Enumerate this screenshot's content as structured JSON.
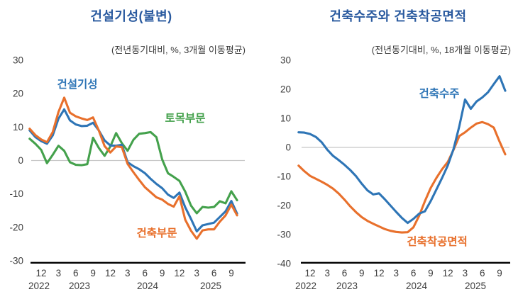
{
  "colors": {
    "title": "#2a5a9f",
    "tick_text": "#3d3d3d",
    "axis": "#000000",
    "zero_line": "#c8c8c8",
    "blue_series": "#2e75b6",
    "green_series": "#44a14c",
    "orange_series": "#e8702c"
  },
  "chart_data": [
    {
      "type": "line",
      "title": "건설기성(불변)",
      "subtitle": "(전년동기대비,  %,  3개월 이동평균)",
      "x_start": "2022-10",
      "x_end": "2025-10",
      "x_interval": "1 month",
      "x_tick_labels": [
        "12",
        "3",
        "6",
        "9",
        "12",
        "3",
        "6",
        "9",
        "12",
        "3",
        "6",
        "9"
      ],
      "x_tick_month_indices": [
        2,
        5,
        8,
        11,
        14,
        17,
        20,
        23,
        26,
        29,
        32,
        35
      ],
      "year_labels": [
        "2022",
        "2023",
        "2024",
        "2025"
      ],
      "ylim": [
        -30,
        30
      ],
      "y_ticks": [
        30,
        20,
        10,
        0,
        -10,
        -20,
        -30
      ],
      "unit": "%",
      "zero_line": true,
      "grid": false,
      "series": [
        {
          "key": "civil-works",
          "name": "토목부문",
          "color": "#44a14c",
          "values": [
            6.5,
            5.0,
            3.2,
            -0.8,
            1.7,
            4.4,
            2.9,
            -0.5,
            -1.3,
            -1.4,
            -1.1,
            6.8,
            3.8,
            1.4,
            4.2,
            8.2,
            5.2,
            2.9,
            6.2,
            8.0,
            8.2,
            8.5,
            7.0,
            0.3,
            -3.8,
            -4.9,
            -6.1,
            -9.3,
            -13.5,
            -15.8,
            -13.9,
            -14.1,
            -13.9,
            -12.2,
            -12.8,
            -9.2,
            -11.9
          ]
        },
        {
          "key": "construction-completed",
          "name": "건설기성",
          "color": "#2e75b6",
          "values": [
            9.0,
            7.0,
            5.8,
            5.0,
            7.5,
            12.5,
            15.3,
            12.0,
            10.8,
            10.3,
            10.4,
            11.3,
            9.0,
            6.0,
            4.5,
            4.4,
            4.7,
            -0.5,
            -1.7,
            -2.6,
            -3.8,
            -5.5,
            -7.0,
            -8.3,
            -10.2,
            -11.2,
            -9.6,
            -14.0,
            -17.5,
            -21.2,
            -19.4,
            -19.0,
            -18.6,
            -16.9,
            -15.2,
            -12.1,
            -15.9
          ]
        },
        {
          "key": "building-works",
          "name": "건축부문",
          "color": "#e8702c",
          "values": [
            9.5,
            7.6,
            6.3,
            5.5,
            8.5,
            14.5,
            18.8,
            14.3,
            13.2,
            12.6,
            12.1,
            12.9,
            9.0,
            4.3,
            2.4,
            4.2,
            4.0,
            -1.0,
            -3.5,
            -5.8,
            -8.0,
            -9.5,
            -11.0,
            -11.7,
            -13.0,
            -13.8,
            -10.7,
            -17.7,
            -21.0,
            -23.4,
            -20.9,
            -20.6,
            -20.6,
            -18.3,
            -16.4,
            -13.2,
            -16.4
          ]
        }
      ]
    },
    {
      "type": "line",
      "title": "건축수주와 건축착공면적",
      "subtitle": "(전년동기대비,  %,  18개월 이동평균)",
      "x_start": "2022-10",
      "x_end": "2025-10",
      "x_interval": "1 month",
      "x_tick_labels": [
        "12",
        "3",
        "6",
        "9",
        "12",
        "3",
        "6",
        "9",
        "12",
        "3",
        "6",
        "9"
      ],
      "x_tick_month_indices": [
        2,
        5,
        8,
        11,
        14,
        17,
        20,
        23,
        26,
        29,
        32,
        35
      ],
      "year_labels": [
        "2022",
        "2023",
        "2024",
        "2025"
      ],
      "ylim": [
        -40,
        30
      ],
      "y_ticks": [
        30,
        20,
        10,
        0,
        -10,
        -20,
        -30,
        -40
      ],
      "unit": "%",
      "zero_line": true,
      "grid": false,
      "series": [
        {
          "key": "building-starts-area",
          "name": "건축착공면적",
          "color": "#e8702c",
          "values": [
            -6.3,
            -8.2,
            -9.8,
            -10.8,
            -11.8,
            -12.9,
            -14.2,
            -15.9,
            -18.0,
            -20.3,
            -22.3,
            -24.0,
            -25.3,
            -26.3,
            -27.2,
            -28.1,
            -28.7,
            -29.1,
            -29.3,
            -29.2,
            -27.5,
            -23.5,
            -18.5,
            -14.0,
            -10.5,
            -7.5,
            -5.0,
            -0.8,
            3.9,
            5.2,
            6.8,
            8.2,
            8.7,
            8.0,
            6.8,
            2.0,
            -2.4
          ]
        },
        {
          "key": "building-orders",
          "name": "건축수주",
          "color": "#2e75b6",
          "values": [
            5.2,
            5.1,
            4.6,
            3.6,
            1.8,
            -0.8,
            -2.9,
            -4.4,
            -6.0,
            -7.8,
            -9.9,
            -12.5,
            -14.8,
            -16.2,
            -15.8,
            -17.8,
            -20.0,
            -22.2,
            -24.3,
            -26.0,
            -24.6,
            -22.8,
            -22.0,
            -18.5,
            -14.5,
            -10.5,
            -6.2,
            -0.5,
            7.3,
            16.5,
            13.3,
            15.8,
            17.2,
            19.0,
            21.8,
            24.5,
            19.5
          ]
        }
      ]
    }
  ]
}
